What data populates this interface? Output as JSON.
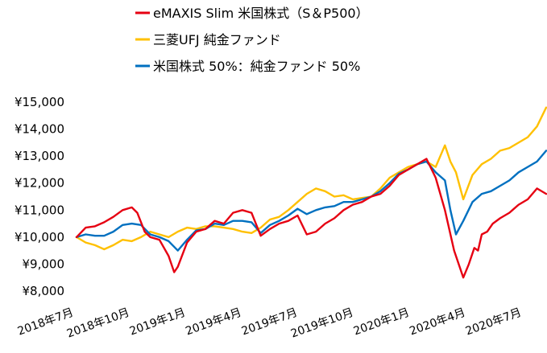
{
  "chart_data": {
    "type": "line",
    "title": "",
    "xlabel": "",
    "ylabel": "",
    "ylim": [
      8000,
      15000
    ],
    "y_ticks": [
      8000,
      9000,
      10000,
      11000,
      12000,
      13000,
      14000,
      15000
    ],
    "y_tick_labels": [
      "¥8,000",
      "¥9,000",
      "¥10,000",
      "¥11,000",
      "¥12,000",
      "¥13,000",
      "¥14,000",
      "¥15,000"
    ],
    "x_tick_labels": [
      "2018年7月",
      "2018年10月",
      "2019年1月",
      "2019年4月",
      "2019年7月",
      "2019年10月",
      "2020年1月",
      "2020年4月",
      "2020年7月"
    ],
    "x_range_months": [
      0,
      25.5
    ],
    "grid": false,
    "legend_position": "top",
    "series": [
      {
        "name": "eMAXIS Slim 米国株式（S＆P500）",
        "color": "#e60012",
        "x": [
          0,
          0.5,
          1,
          1.5,
          2,
          2.5,
          3,
          3.3,
          3.7,
          4,
          4.5,
          5,
          5.3,
          5.5,
          6,
          6.5,
          7,
          7.5,
          8,
          8.5,
          9,
          9.5,
          10,
          10.5,
          11,
          11.5,
          12,
          12.5,
          13,
          13.5,
          14,
          14.5,
          15,
          15.5,
          16,
          16.5,
          17,
          17.5,
          18,
          18.5,
          19,
          19.5,
          20,
          20.5,
          21,
          21.3,
          21.6,
          21.8,
          22,
          22.3,
          22.6,
          23,
          23.5,
          24,
          24.5,
          25,
          25.5
        ],
        "y": [
          10000,
          10350,
          10400,
          10550,
          10750,
          11000,
          11100,
          10900,
          10200,
          10000,
          9900,
          9300,
          8700,
          8900,
          9800,
          10200,
          10300,
          10600,
          10500,
          10900,
          11000,
          10900,
          10050,
          10300,
          10500,
          10600,
          10800,
          10100,
          10200,
          10500,
          10700,
          11000,
          11200,
          11300,
          11500,
          11600,
          11900,
          12300,
          12500,
          12700,
          12900,
          12200,
          11000,
          9500,
          8500,
          9000,
          9600,
          9500,
          10100,
          10200,
          10500,
          10700,
          10900,
          11200,
          11400,
          11800,
          11600
        ]
      },
      {
        "name": "三菱UFJ 純金ファンド",
        "color": "#ffc000",
        "x": [
          0,
          0.5,
          1,
          1.5,
          2,
          2.5,
          3,
          3.5,
          4,
          4.5,
          5,
          5.5,
          6,
          6.5,
          7,
          7.5,
          8,
          8.5,
          9,
          9.5,
          10,
          10.5,
          11,
          11.5,
          12,
          12.5,
          13,
          13.5,
          14,
          14.5,
          15,
          15.5,
          16,
          16.5,
          17,
          17.5,
          18,
          18.5,
          19,
          19.5,
          20,
          20.3,
          20.6,
          21,
          21.5,
          22,
          22.5,
          23,
          23.5,
          24,
          24.5,
          25,
          25.5
        ],
        "y": [
          10000,
          9800,
          9700,
          9550,
          9700,
          9900,
          9850,
          10000,
          10200,
          10100,
          10000,
          10200,
          10350,
          10300,
          10400,
          10400,
          10350,
          10300,
          10200,
          10150,
          10350,
          10650,
          10750,
          11000,
          11300,
          11600,
          11800,
          11700,
          11500,
          11550,
          11400,
          11450,
          11500,
          11800,
          12200,
          12400,
          12600,
          12700,
          12800,
          12600,
          13400,
          12800,
          12400,
          11400,
          12300,
          12700,
          12900,
          13200,
          13300,
          13500,
          13700,
          14100,
          14800
        ]
      },
      {
        "name": "米国株式 50%：純金ファンド 50%",
        "color": "#0070c0",
        "x": [
          0,
          0.5,
          1,
          1.5,
          2,
          2.5,
          3,
          3.5,
          4,
          4.5,
          5,
          5.5,
          6,
          6.5,
          7,
          7.5,
          8,
          8.5,
          9,
          9.5,
          10,
          10.5,
          11,
          11.5,
          12,
          12.5,
          13,
          13.5,
          14,
          14.5,
          15,
          15.5,
          16,
          16.5,
          17,
          17.5,
          18,
          18.5,
          19,
          19.5,
          20,
          20.3,
          20.6,
          21,
          21.5,
          22,
          22.5,
          23,
          23.5,
          24,
          24.5,
          25,
          25.5
        ],
        "y": [
          10000,
          10100,
          10050,
          10050,
          10200,
          10450,
          10500,
          10450,
          10100,
          10000,
          9850,
          9500,
          9900,
          10250,
          10300,
          10500,
          10450,
          10600,
          10600,
          10550,
          10150,
          10450,
          10600,
          10800,
          11050,
          10850,
          11000,
          11100,
          11150,
          11300,
          11300,
          11400,
          11500,
          11700,
          12000,
          12350,
          12500,
          12700,
          12800,
          12400,
          12100,
          11000,
          10100,
          10600,
          11300,
          11600,
          11700,
          11900,
          12100,
          12400,
          12600,
          12800,
          13200
        ]
      }
    ]
  }
}
